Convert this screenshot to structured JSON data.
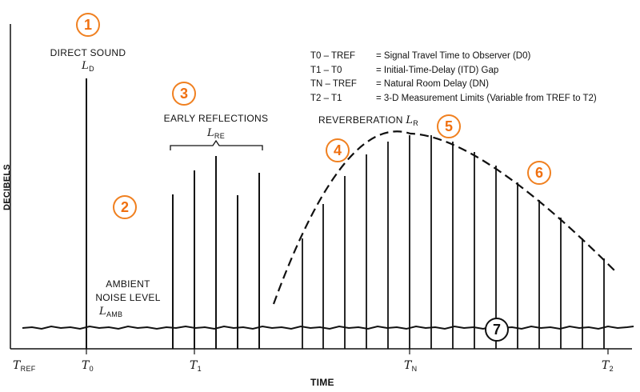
{
  "axis": {
    "y_label": "DECIBELS",
    "x_label": "TIME",
    "ticks": [
      {
        "main": "T",
        "sub": "REF"
      },
      {
        "main": "T",
        "sub": "0"
      },
      {
        "main": "T",
        "sub": "1"
      },
      {
        "main": "T",
        "sub": "N"
      },
      {
        "main": "T",
        "sub": "2"
      }
    ]
  },
  "labels": {
    "direct_sound": {
      "title": "DIRECT SOUND",
      "sym": "L",
      "sub": "D"
    },
    "early_reflections": {
      "title": "EARLY REFLECTIONS",
      "sym": "L",
      "sub": "RE"
    },
    "reverberation": {
      "title": "REVERBERATION",
      "sym": "L",
      "sub": "R"
    },
    "ambient": {
      "line1": "AMBIENT",
      "line2": "NOISE LEVEL",
      "sym": "L",
      "sub": "AMB"
    }
  },
  "legend": [
    {
      "lhs": "T0 – TREF",
      "rhs": "= Signal Travel Time to Observer (D0)"
    },
    {
      "lhs": "T1 – T0",
      "rhs": "= Initial-Time-Delay (ITD) Gap"
    },
    {
      "lhs": "TN – TREF",
      "rhs": "= Natural Room Delay (DN)"
    },
    {
      "lhs": "T2 – T1",
      "rhs": "= 3-D Measurement Limits (Variable from TREF to T2)"
    }
  ],
  "markers": [
    "1",
    "2",
    "3",
    "4",
    "5",
    "6",
    "7"
  ],
  "colors": {
    "marker_accent": "#f08020",
    "ink": "#111111"
  }
}
